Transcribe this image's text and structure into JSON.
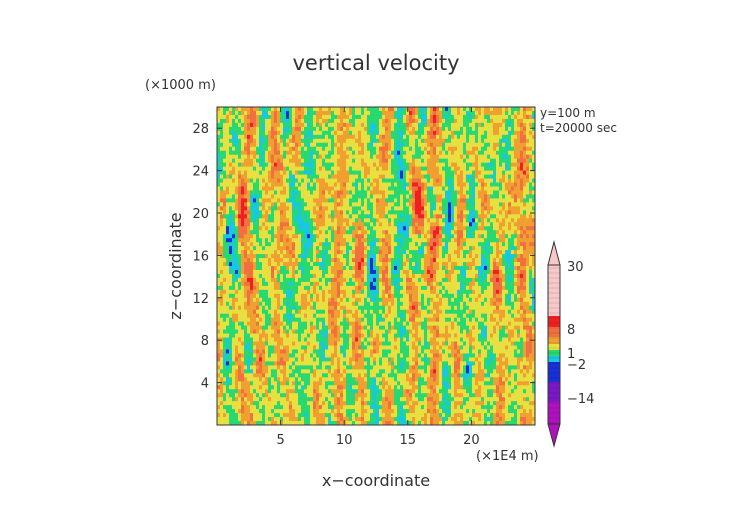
{
  "chart_data": {
    "type": "heatmap",
    "title": "vertical velocity",
    "xlabel": "x−coordinate",
    "ylabel": "z−coordinate",
    "x_unit": "(×1E4 m)",
    "y_unit": "(×1000 m)",
    "annotations": [
      "y=100  m",
      "t=20000  sec"
    ],
    "xlim": [
      0,
      25
    ],
    "ylim": [
      0,
      30
    ],
    "x_ticks": [
      5,
      10,
      15,
      20
    ],
    "y_ticks": [
      4,
      8,
      12,
      16,
      20,
      24,
      28
    ],
    "colorbar": {
      "labels": [
        {
          "text": "30",
          "value": 30
        },
        {
          "text": "8",
          "value": 8
        },
        {
          "text": "1",
          "value": 1
        },
        {
          "text": "−2",
          "value": -2
        },
        {
          "text": "−14",
          "value": -14
        }
      ],
      "extend": "both",
      "colors": {
        "very_low": "#b010c0",
        "low": "#7a18c8",
        "negative": "#1830d8",
        "near_zero_neg": "#18c8e0",
        "near_zero": "#28d870",
        "small_pos": "#e8e040",
        "pos": "#f0a030",
        "high_pos": "#f07040",
        "very_high": "#f02020",
        "extreme": "#f8c8c8"
      }
    }
  }
}
